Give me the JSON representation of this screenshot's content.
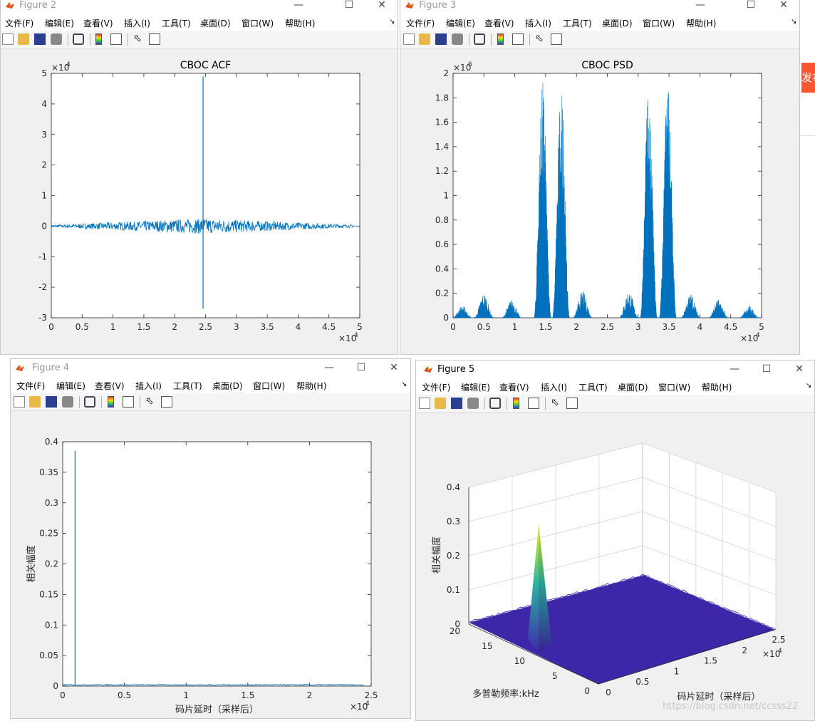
{
  "menu": [
    "文件(F)",
    "编辑(E)",
    "查看(V)",
    "插入(I)",
    "工具(T)",
    "桌面(D)",
    "窗口(W)",
    "帮助(H)"
  ],
  "windows": [
    {
      "id": "fig2",
      "title": "Figure 2",
      "active": false
    },
    {
      "id": "fig3",
      "title": "Figure 3",
      "active": false
    },
    {
      "id": "fig4",
      "title": "Figure 4",
      "active": false
    },
    {
      "id": "fig5",
      "title": "Figure 5",
      "active": true
    }
  ],
  "side": {
    "button_text": "发布"
  },
  "watermark": "https://blog.csdn.net/ccsss22",
  "colors": {
    "line": "#0072bd",
    "surface": "#3e26a8",
    "peak_top": "#f9fb0e",
    "peak_mid": "#2bb7a3"
  },
  "chart_data": [
    {
      "id": "acf",
      "type": "line",
      "title": "CBOC ACF",
      "x_ticks": [
        "0",
        "0.5",
        "1",
        "1.5",
        "2",
        "2.5",
        "3",
        "3.5",
        "4",
        "4.5",
        "5"
      ],
      "y_ticks": [
        "-3",
        "-2",
        "-1",
        "0",
        "1",
        "2",
        "3",
        "4",
        "5"
      ],
      "x_exponent": "×10",
      "x_exp_power": "4",
      "y_exponent": "×10",
      "y_exp_power": "4",
      "xlim": [
        0,
        50000
      ],
      "ylim": [
        -30000,
        50000
      ],
      "noise_envelope_max": 2500,
      "peak": {
        "x": 24600,
        "y": 49000,
        "y_min": -27000
      }
    },
    {
      "id": "psd",
      "type": "line",
      "title": "CBOC PSD",
      "x_ticks": [
        "0",
        "0.5",
        "1",
        "1.5",
        "2",
        "2.5",
        "3",
        "3.5",
        "4",
        "4.5",
        "5"
      ],
      "y_ticks": [
        "0",
        "0.2",
        "0.4",
        "0.6",
        "0.8",
        "1",
        "1.2",
        "1.4",
        "1.6",
        "1.8",
        "2"
      ],
      "x_exponent": "×10",
      "x_exp_power": "4",
      "y_exponent": "×10",
      "y_exp_power": "6",
      "xlim": [
        0,
        50000
      ],
      "ylim": [
        0,
        2000000
      ],
      "lobes": [
        {
          "center": 1500,
          "height": 100000
        },
        {
          "center": 5000,
          "height": 200000
        },
        {
          "center": 9500,
          "height": 150000
        },
        {
          "center": 14500,
          "height": 1950000
        },
        {
          "center": 17500,
          "height": 1900000
        },
        {
          "center": 21000,
          "height": 220000
        },
        {
          "center": 28500,
          "height": 220000
        },
        {
          "center": 31700,
          "height": 1900000
        },
        {
          "center": 34800,
          "height": 1950000
        },
        {
          "center": 38500,
          "height": 200000
        },
        {
          "center": 43000,
          "height": 150000
        },
        {
          "center": 48000,
          "height": 100000
        }
      ]
    },
    {
      "id": "corr",
      "type": "line",
      "title": "",
      "x_ticks": [
        "0",
        "0.5",
        "1",
        "1.5",
        "2",
        "2.5"
      ],
      "y_ticks": [
        "0",
        "0.05",
        "0.1",
        "0.15",
        "0.2",
        "0.25",
        "0.3",
        "0.35",
        "0.4"
      ],
      "x_exponent": "×10",
      "x_exp_power": "4",
      "xlabel": "码片延时（采样后）",
      "ylabel": "相关幅度",
      "xlim": [
        0,
        25000
      ],
      "ylim": [
        0,
        0.4
      ],
      "peak": {
        "x": 1000,
        "y": 0.385
      },
      "floor": 0.002
    },
    {
      "id": "surf",
      "type": "surface3d",
      "title": "",
      "z_ticks": [
        "0",
        "0.1",
        "0.2",
        "0.3",
        "0.4"
      ],
      "y_ticks": [
        "0",
        "5",
        "10",
        "15",
        "20"
      ],
      "x_ticks": [
        "0",
        "0.5",
        "1",
        "1.5",
        "2",
        "2.5"
      ],
      "x_exponent": "×10",
      "x_exp_power": "4",
      "zlabel": "相关幅度",
      "ylabel": "多普勒频率:kHz",
      "xlabel": "码片延时（采样后）",
      "zlim": [
        0,
        0.4
      ],
      "peak": {
        "x": 1000,
        "y": 10,
        "z": 0.3
      }
    }
  ]
}
